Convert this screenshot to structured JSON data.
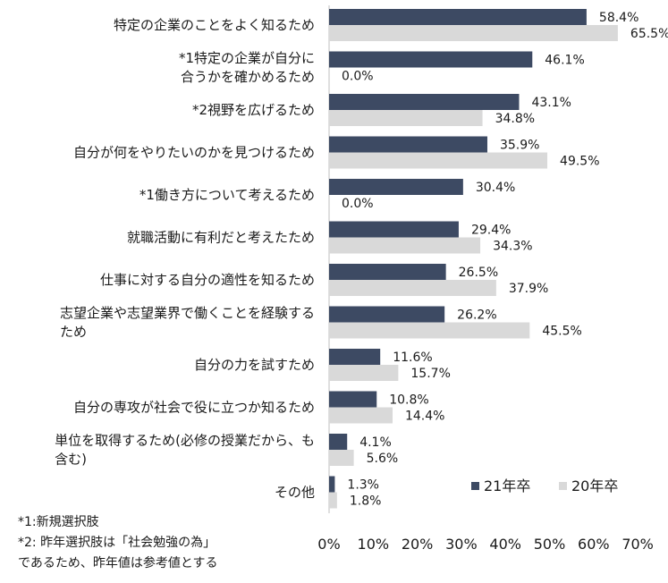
{
  "chart_data": {
    "type": "bar",
    "orientation": "horizontal",
    "categories": [
      [
        "特定の企業のことをよく知るため"
      ],
      [
        "*1特定の企業が自分に",
        "合うかを確かめるため"
      ],
      [
        "*2視野を広げるため"
      ],
      [
        "自分が何をやりたいのかを見つけるため"
      ],
      [
        "*1働き方について考えるため"
      ],
      [
        "就職活動に有利だと考えたため"
      ],
      [
        "仕事に対する自分の適性を知るため"
      ],
      [
        "志望企業や志望業界で働くことを経験する",
        "ため"
      ],
      [
        "自分の力を試すため"
      ],
      [
        "自分の専攻が社会で役に立つか知るため"
      ],
      [
        "単位を取得するため(必修の授業だから、も",
        "含む)"
      ],
      [
        "その他"
      ]
    ],
    "series": [
      {
        "name": "21年卒",
        "color": "#3d4a63",
        "values": [
          58.4,
          46.1,
          43.1,
          35.9,
          30.4,
          29.4,
          26.5,
          26.2,
          11.6,
          10.8,
          4.1,
          1.3
        ],
        "labels": [
          "58.4%",
          "46.1%",
          "43.1%",
          "35.9%",
          "30.4%",
          "29.4%",
          "26.5%",
          "26.2%",
          "11.6%",
          "10.8%",
          "4.1%",
          "1.3%"
        ]
      },
      {
        "name": "20年卒",
        "color": "#d9d9d9",
        "values": [
          65.5,
          0.0,
          34.8,
          49.5,
          0.0,
          34.3,
          37.9,
          45.5,
          15.7,
          14.4,
          5.6,
          1.8
        ],
        "labels": [
          "65.5%",
          "0.0%",
          "34.8%",
          "49.5%",
          "0.0%",
          "34.3%",
          "37.9%",
          "45.5%",
          "15.7%",
          "14.4%",
          "5.6%",
          "1.8%"
        ]
      }
    ],
    "xlim": [
      0,
      70
    ],
    "xticks": [
      0,
      10,
      20,
      30,
      40,
      50,
      60,
      70
    ],
    "xtick_labels": [
      "0%",
      "10%",
      "20%",
      "30%",
      "40%",
      "50%",
      "60%",
      "70%"
    ],
    "grid": false,
    "legend": "bottom-right"
  },
  "notes": [
    "*1:新規選択肢",
    "*2: 昨年選択肢は「社会勉強の為」",
    "であるため、昨年値は参考値とする"
  ]
}
